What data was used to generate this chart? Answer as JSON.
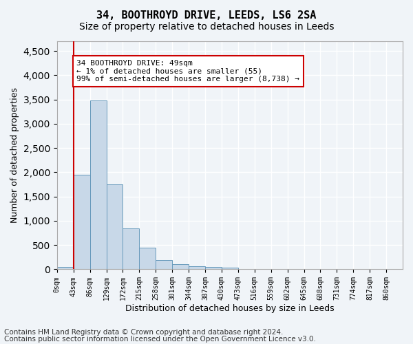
{
  "title": "34, BOOTHROYD DRIVE, LEEDS, LS6 2SA",
  "subtitle": "Size of property relative to detached houses in Leeds",
  "xlabel": "Distribution of detached houses by size in Leeds",
  "ylabel": "Number of detached properties",
  "bin_labels": [
    "0sqm",
    "43sqm",
    "86sqm",
    "129sqm",
    "172sqm",
    "215sqm",
    "258sqm",
    "301sqm",
    "344sqm",
    "387sqm",
    "430sqm",
    "473sqm",
    "516sqm",
    "559sqm",
    "602sqm",
    "645sqm",
    "688sqm",
    "731sqm",
    "774sqm",
    "817sqm",
    "860sqm"
  ],
  "bar_heights": [
    55,
    1950,
    3480,
    1750,
    840,
    440,
    185,
    105,
    60,
    50,
    40,
    0,
    0,
    0,
    0,
    0,
    0,
    0,
    0,
    0
  ],
  "bar_color": "#c8d8e8",
  "bar_edge_color": "#6699bb",
  "highlight_line_color": "#cc0000",
  "annotation_text": "34 BOOTHROYD DRIVE: 49sqm\n← 1% of detached houses are smaller (55)\n99% of semi-detached houses are larger (8,738) →",
  "annotation_box_color": "#ffffff",
  "annotation_box_edge_color": "#cc0000",
  "ylim": [
    0,
    4700
  ],
  "yticks": [
    0,
    500,
    1000,
    1500,
    2000,
    2500,
    3000,
    3500,
    4000,
    4500
  ],
  "footer_line1": "Contains HM Land Registry data © Crown copyright and database right 2024.",
  "footer_line2": "Contains public sector information licensed under the Open Government Licence v3.0.",
  "background_color": "#f0f4f8",
  "plot_background_color": "#f0f4f8",
  "grid_color": "#ffffff",
  "title_fontsize": 11,
  "subtitle_fontsize": 10,
  "footer_fontsize": 7.5
}
